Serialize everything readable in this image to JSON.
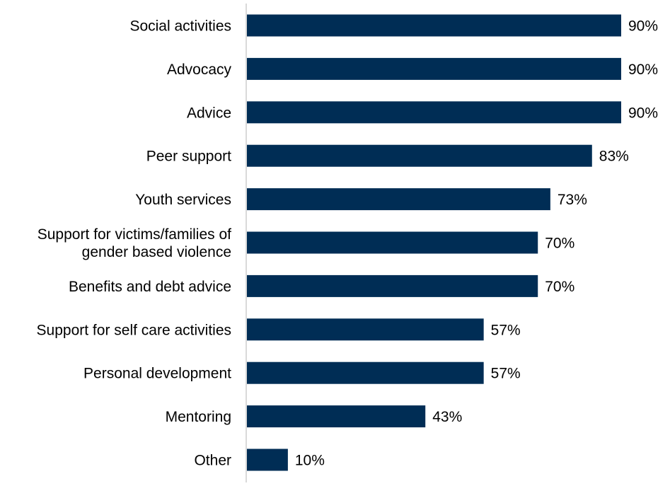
{
  "chart_data": {
    "type": "bar",
    "orientation": "horizontal",
    "categories": [
      [
        "Social activities"
      ],
      [
        "Advocacy"
      ],
      [
        "Advice"
      ],
      [
        "Peer support"
      ],
      [
        "Youth services"
      ],
      [
        "Support for victims/families of",
        "gender based violence"
      ],
      [
        "Benefits and debt advice"
      ],
      [
        "Support for self care activities"
      ],
      [
        "Personal development"
      ],
      [
        "Mentoring"
      ],
      [
        "Other"
      ]
    ],
    "values": [
      90,
      90,
      90,
      83,
      73,
      70,
      70,
      57,
      57,
      43,
      10
    ],
    "data_labels": [
      "90%",
      "90%",
      "90%",
      "83%",
      "73%",
      "70%",
      "70%",
      "57%",
      "57%",
      "43%",
      "10%"
    ],
    "unit": "%",
    "xlim": [
      0,
      90
    ],
    "grid": false,
    "bar_color": "#002d55",
    "axis_color": "#d9d9d9"
  }
}
